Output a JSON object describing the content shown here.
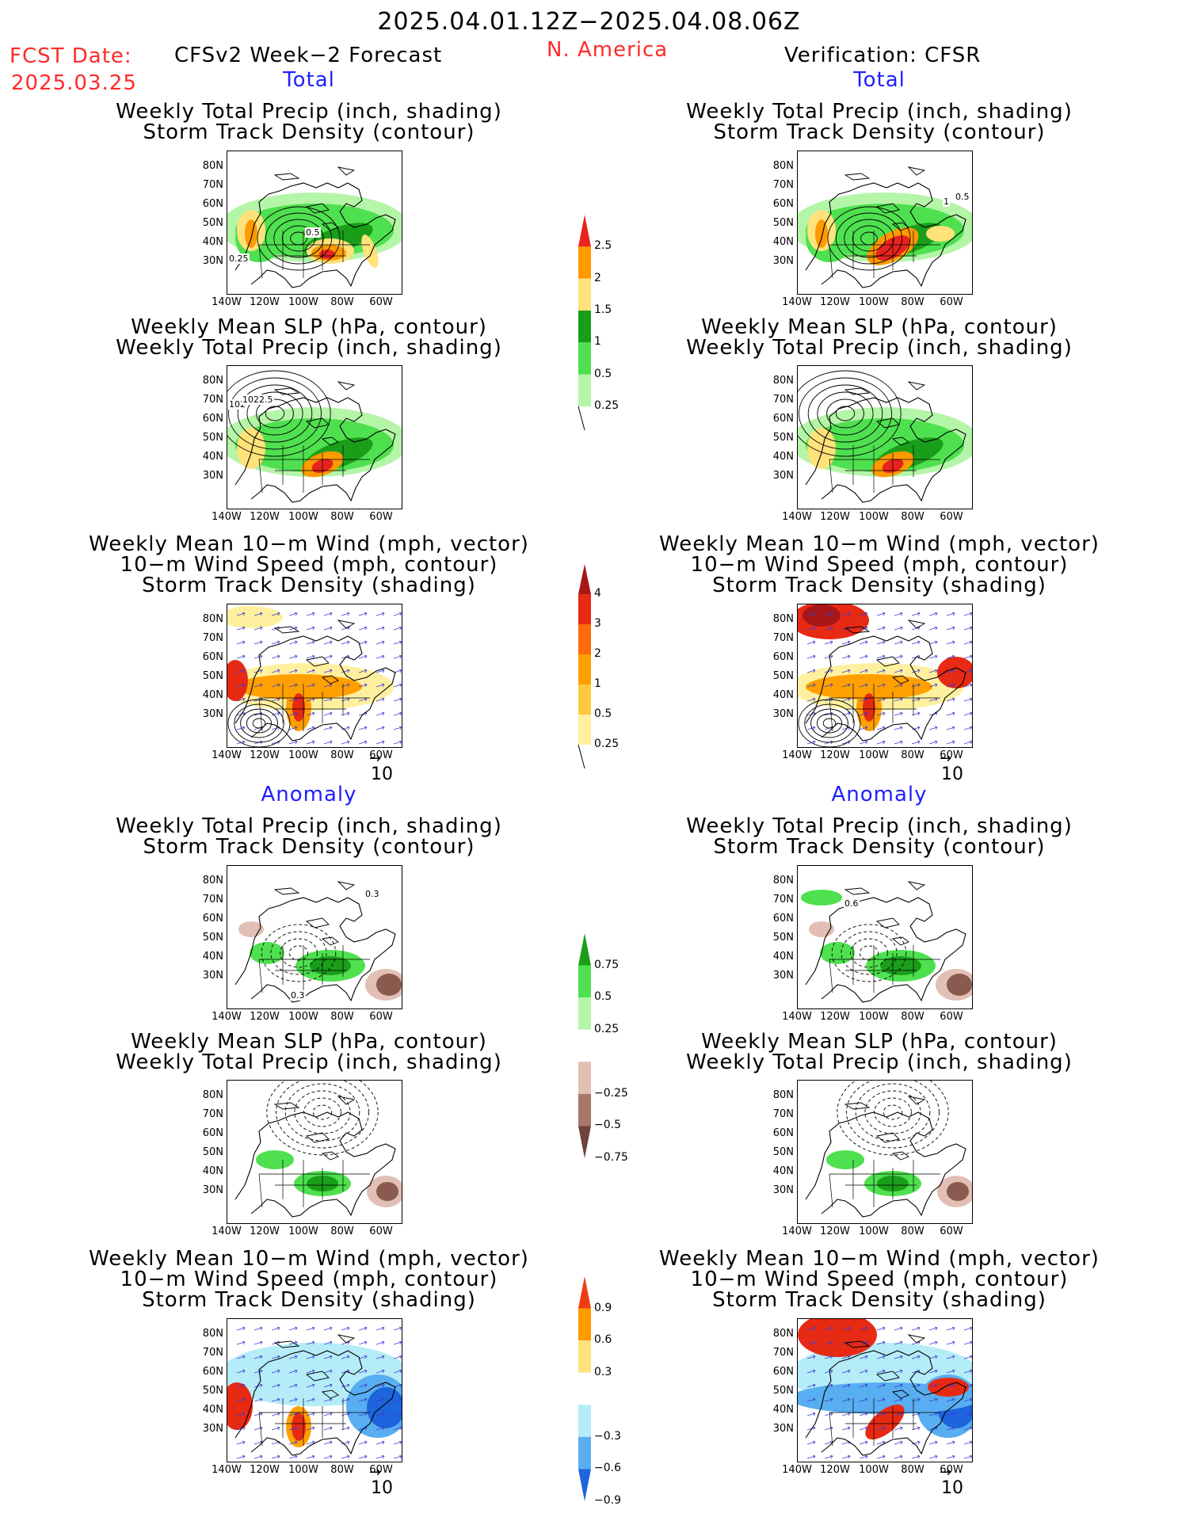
{
  "header": {
    "period": "2025.04.01.12Z−2025.04.08.06Z",
    "fcst_label": "FCST Date:",
    "fcst_date": "2025.03.25",
    "left_title": "CFSv2 Week−2 Forecast",
    "region": "N. America",
    "right_title": "Verification: CFSR"
  },
  "sections": {
    "total": "Total",
    "anomaly": "Anomaly"
  },
  "panel_titles": {
    "precip_track": [
      "Weekly Total Precip (inch, shading)",
      "Storm Track Density (contour)"
    ],
    "slp_precip": [
      "Weekly Mean SLP (hPa, contour)",
      "Weekly Total Precip (inch, shading)"
    ],
    "wind_track": [
      "Weekly Mean 10−m Wind (mph, vector)",
      "10−m Wind Speed (mph, contour)",
      "Storm Track Density (shading)"
    ]
  },
  "axes": {
    "lat_ticks": [
      "80N",
      "70N",
      "60N",
      "50N",
      "40N",
      "30N"
    ],
    "lon_ticks": [
      "140W",
      "120W",
      "100W",
      "80W",
      "60W"
    ]
  },
  "vector_reference": "10",
  "contour_labels": {
    "fc_precip_track_total": [
      "0.5",
      "0.25"
    ],
    "ver_precip_track_total": [
      "1",
      "0.5"
    ],
    "fc_slp_total": [
      "102",
      "1022.5"
    ],
    "fc_precip_track_anom": [
      "0.3",
      "0.3"
    ],
    "ver_precip_track_anom": [
      "0.6"
    ]
  },
  "colorbars": {
    "precip_total": {
      "labels": [
        "2.5",
        "2",
        "1.5",
        "1",
        "0.5",
        "0.25"
      ],
      "colors": [
        "#e8231e",
        "#ff9a00",
        "#ffe27a",
        "#1a9e1a",
        "#4fe04f",
        "#b4f5a8"
      ]
    },
    "track_total": {
      "labels": [
        "4",
        "3",
        "2",
        "1",
        "0.5",
        "0.25"
      ],
      "colors": [
        "#a81717",
        "#e62a14",
        "#ff6a0a",
        "#ffa000",
        "#ffc840",
        "#fff0a0"
      ]
    },
    "precip_anom": {
      "labels": [
        "0.75",
        "0.5",
        "0.25",
        "−0.25",
        "−0.5",
        "−0.75"
      ],
      "colors": [
        "#1a9e1a",
        "#4fe04f",
        "#b4f5a8",
        "#ffffff",
        "#e2bfb4",
        "#a8766a",
        "#6e4438"
      ]
    },
    "track_anom": {
      "labels": [
        "0.9",
        "0.6",
        "0.3",
        "−0.3",
        "−0.6",
        "−0.9"
      ],
      "colors": [
        "#f03c14",
        "#ff9a00",
        "#ffe27a",
        "#ffffff",
        "#b4ecf8",
        "#58aef0",
        "#1e64dc"
      ]
    }
  },
  "colors": {
    "land_outline": "#000000",
    "precip_light": "#b4f5a8",
    "precip_mid": "#4fe04f",
    "precip_dark": "#1a9e1a",
    "precip_yellow": "#ffe27a",
    "precip_orange": "#ff9a00",
    "precip_red": "#e8231e",
    "dry_light": "#e2bfb4",
    "dry_dark": "#8a5a4e",
    "track_pale": "#fff0a0",
    "track_orange": "#ffa000",
    "track_red": "#e62a14",
    "track_dark": "#a81717",
    "blue_light": "#b4ecf8",
    "blue_mid": "#58aef0",
    "blue_dark": "#1e64dc",
    "vector": "#3b3bd6"
  }
}
